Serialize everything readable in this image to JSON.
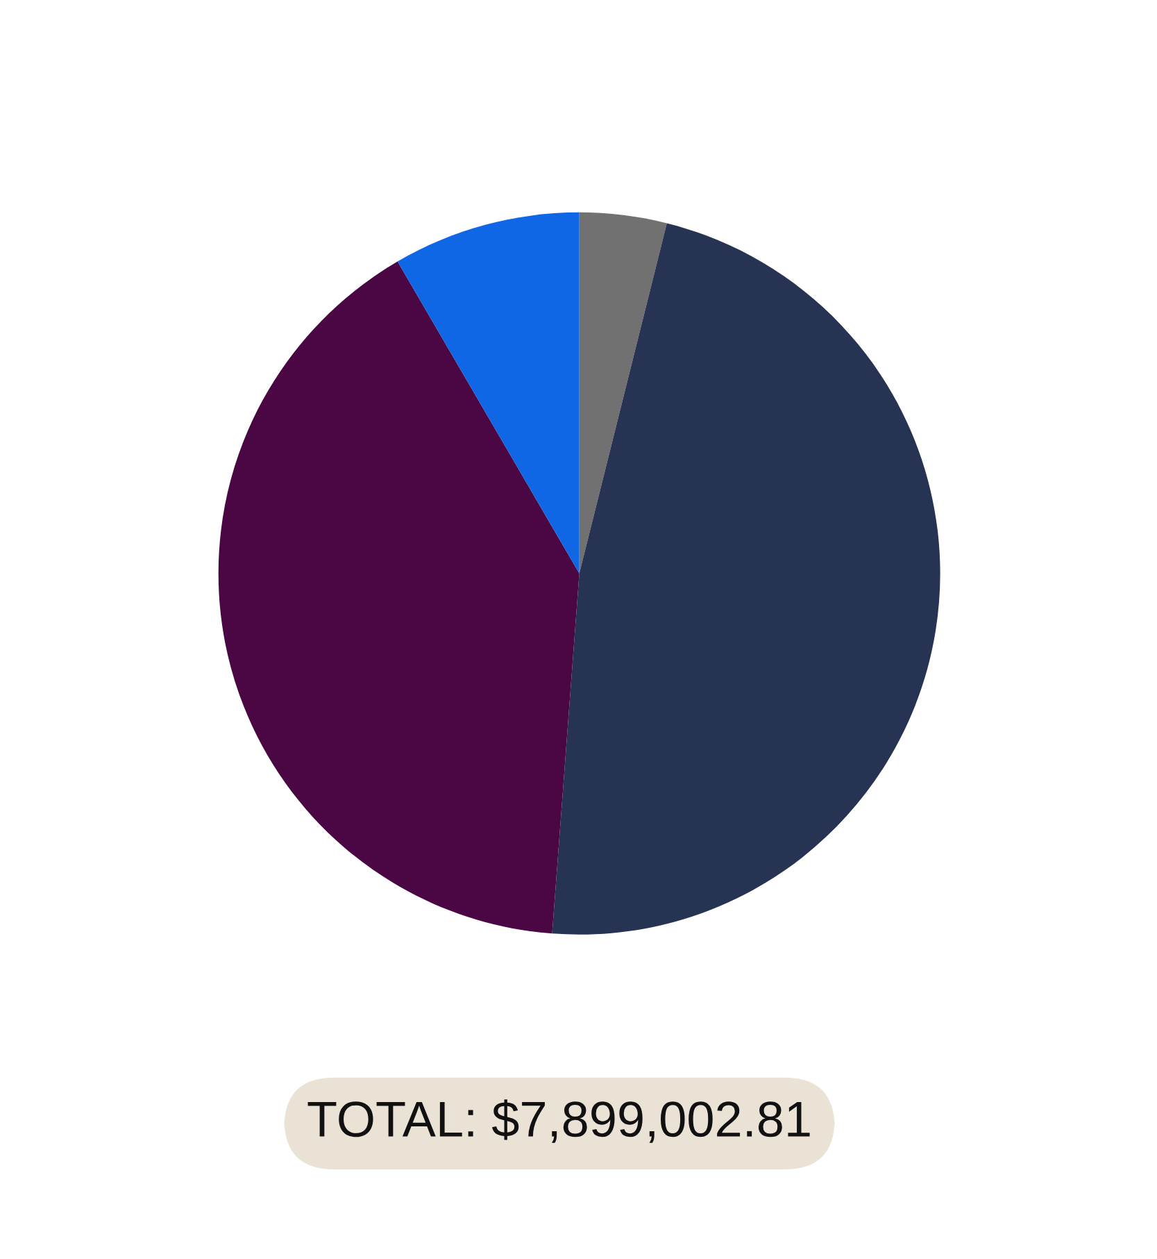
{
  "chart_data": {
    "type": "pie",
    "categories": [
      null,
      null,
      null,
      null
    ],
    "values": [
      3.9,
      47.3,
      40.4,
      8.4
    ],
    "colors": [
      "#717171",
      "#263352",
      "#4a0744",
      "#0f67e6"
    ],
    "annotations": [
      "TOTAL: $7,899,002.81"
    ]
  }
}
